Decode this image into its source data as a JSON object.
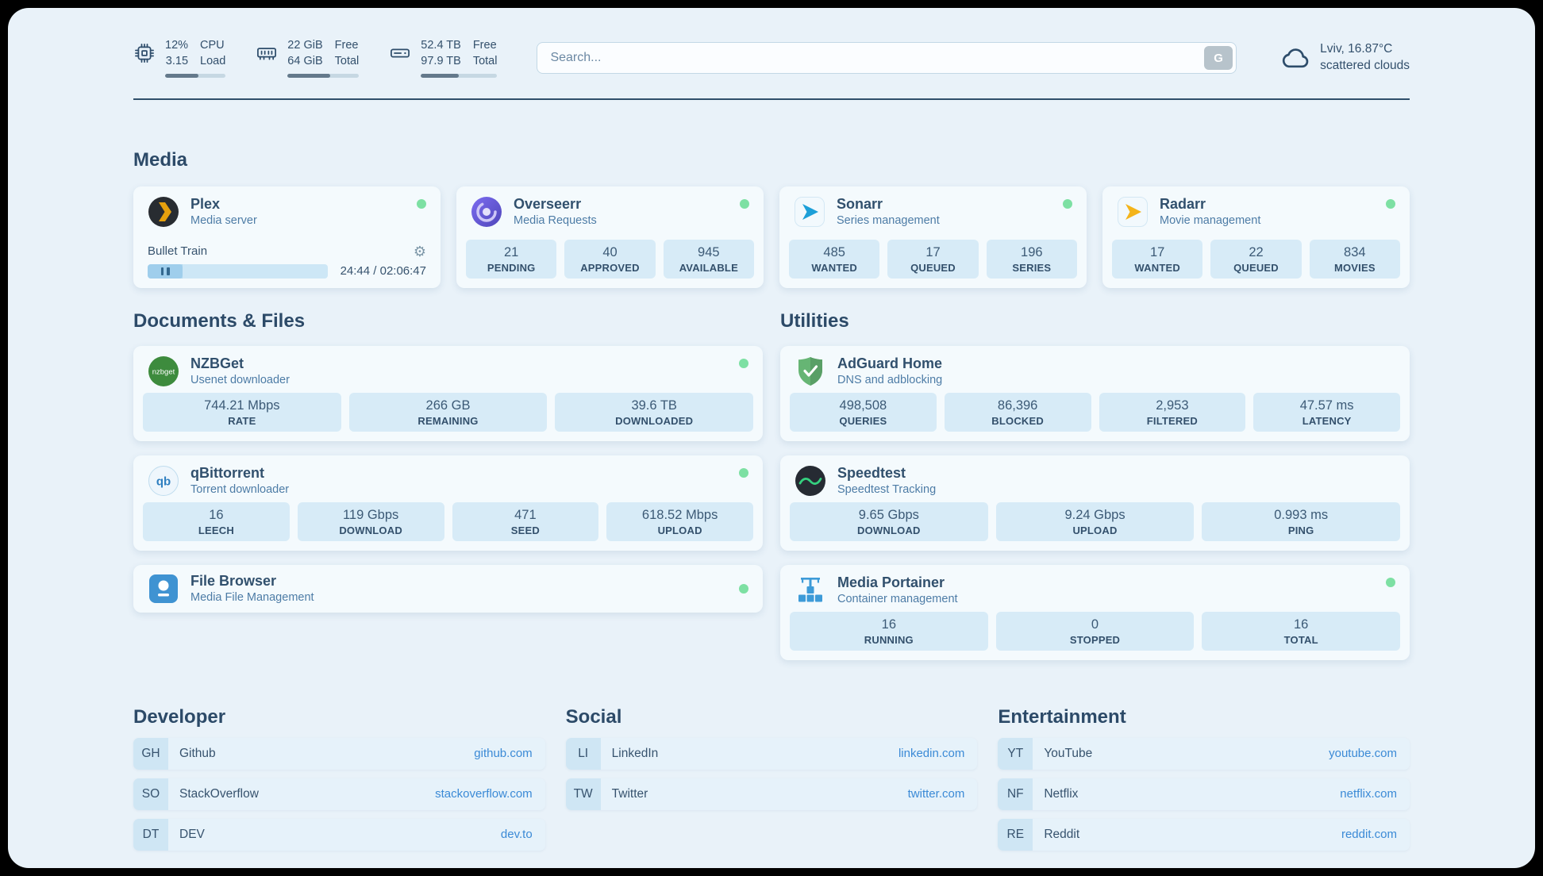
{
  "colors": {
    "page_bg": "#e9f2f9",
    "card_bg": "#f4fafd",
    "stat_bg": "#d7ebf7",
    "text_primary": "#37536e",
    "text_secondary": "#4d7ca6",
    "link": "#3b8ad6",
    "status_online": "#7de0a3",
    "plex_accent": "#e5a00d",
    "sonarr_accent": "#1c9fd8",
    "radarr_accent": "#f4b41a",
    "adguard_accent": "#66b574",
    "speedtest_accent": "#35d07f",
    "portainer_accent": "#3d9bd8"
  },
  "topbar": {
    "cpu": {
      "value_top": "12%",
      "value_bottom": "3.15",
      "label_top": "CPU",
      "label_bottom": "Load",
      "progress_pct": 55
    },
    "memory": {
      "value_top": "22 GiB",
      "value_bottom": "64 GiB",
      "label_top": "Free",
      "label_bottom": "Total",
      "progress_pct": 60
    },
    "disk": {
      "value_top": "52.4 TB",
      "value_bottom": "97.9 TB",
      "label_top": "Free",
      "label_bottom": "Total",
      "progress_pct": 50
    },
    "search": {
      "placeholder": "Search...",
      "provider_button": "G"
    },
    "weather": {
      "location": "Lviv, 16.87°C",
      "condition": "scattered clouds"
    }
  },
  "media": {
    "heading": "Media",
    "plex": {
      "name": "Plex",
      "subtitle": "Media server",
      "online": true,
      "now_playing": {
        "title": "Bullet Train",
        "time": "24:44 / 02:06:47",
        "progress_pct": 19.5
      }
    },
    "overseerr": {
      "name": "Overseerr",
      "subtitle": "Media Requests",
      "online": true,
      "stats": [
        {
          "value": "21",
          "label": "PENDING"
        },
        {
          "value": "40",
          "label": "APPROVED"
        },
        {
          "value": "945",
          "label": "AVAILABLE"
        }
      ]
    },
    "sonarr": {
      "name": "Sonarr",
      "subtitle": "Series management",
      "online": true,
      "stats": [
        {
          "value": "485",
          "label": "WANTED"
        },
        {
          "value": "17",
          "label": "QUEUED"
        },
        {
          "value": "196",
          "label": "SERIES"
        }
      ]
    },
    "radarr": {
      "name": "Radarr",
      "subtitle": "Movie management",
      "online": true,
      "stats": [
        {
          "value": "17",
          "label": "WANTED"
        },
        {
          "value": "22",
          "label": "QUEUED"
        },
        {
          "value": "834",
          "label": "MOVIES"
        }
      ]
    }
  },
  "documents": {
    "heading": "Documents & Files",
    "nzbget": {
      "name": "NZBGet",
      "subtitle": "Usenet downloader",
      "online": true,
      "stats": [
        {
          "value": "744.21 Mbps",
          "label": "RATE"
        },
        {
          "value": "266 GB",
          "label": "REMAINING"
        },
        {
          "value": "39.6 TB",
          "label": "DOWNLOADED"
        }
      ]
    },
    "qbittorrent": {
      "name": "qBittorrent",
      "subtitle": "Torrent downloader",
      "online": true,
      "stats": [
        {
          "value": "16",
          "label": "LEECH"
        },
        {
          "value": "119 Gbps",
          "label": "DOWNLOAD"
        },
        {
          "value": "471",
          "label": "SEED"
        },
        {
          "value": "618.52 Mbps",
          "label": "UPLOAD"
        }
      ]
    },
    "filebrowser": {
      "name": "File Browser",
      "subtitle": "Media File Management",
      "online": true
    }
  },
  "utilities": {
    "heading": "Utilities",
    "adguard": {
      "name": "AdGuard Home",
      "subtitle": "DNS and adblocking",
      "stats": [
        {
          "value": "498,508",
          "label": "QUERIES"
        },
        {
          "value": "86,396",
          "label": "BLOCKED"
        },
        {
          "value": "2,953",
          "label": "FILTERED"
        },
        {
          "value": "47.57 ms",
          "label": "LATENCY"
        }
      ]
    },
    "speedtest": {
      "name": "Speedtest",
      "subtitle": "Speedtest Tracking",
      "stats": [
        {
          "value": "9.65 Gbps",
          "label": "DOWNLOAD"
        },
        {
          "value": "9.24 Gbps",
          "label": "UPLOAD"
        },
        {
          "value": "0.993 ms",
          "label": "PING"
        }
      ]
    },
    "portainer": {
      "name": "Media Portainer",
      "subtitle": "Container management",
      "online": true,
      "stats": [
        {
          "value": "16",
          "label": "RUNNING"
        },
        {
          "value": "0",
          "label": "STOPPED"
        },
        {
          "value": "16",
          "label": "TOTAL"
        }
      ]
    }
  },
  "bookmarks": {
    "developer": {
      "heading": "Developer",
      "items": [
        {
          "abbr": "GH",
          "name": "Github",
          "url": "github.com"
        },
        {
          "abbr": "SO",
          "name": "StackOverflow",
          "url": "stackoverflow.com"
        },
        {
          "abbr": "DT",
          "name": "DEV",
          "url": "dev.to"
        }
      ]
    },
    "social": {
      "heading": "Social",
      "items": [
        {
          "abbr": "LI",
          "name": "LinkedIn",
          "url": "linkedin.com"
        },
        {
          "abbr": "TW",
          "name": "Twitter",
          "url": "twitter.com"
        }
      ]
    },
    "entertainment": {
      "heading": "Entertainment",
      "items": [
        {
          "abbr": "YT",
          "name": "YouTube",
          "url": "youtube.com"
        },
        {
          "abbr": "NF",
          "name": "Netflix",
          "url": "netflix.com"
        },
        {
          "abbr": "RE",
          "name": "Reddit",
          "url": "reddit.com"
        }
      ]
    }
  }
}
